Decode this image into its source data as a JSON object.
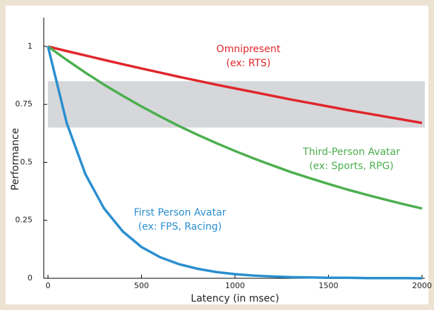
{
  "chart_data": {
    "type": "line",
    "xlabel": "Latency (in msec)",
    "ylabel": "Performance",
    "x": [
      0,
      100,
      200,
      300,
      400,
      500,
      600,
      700,
      800,
      900,
      1000,
      1100,
      1200,
      1300,
      1400,
      1500,
      1600,
      1700,
      1800,
      1900,
      2000
    ],
    "series": [
      {
        "name": "Omnipresent",
        "note": "(ex: RTS)",
        "color": "#e0262c",
        "values": [
          1,
          0.98,
          0.961,
          0.942,
          0.923,
          0.905,
          0.887,
          0.869,
          0.852,
          0.835,
          0.819,
          0.803,
          0.787,
          0.771,
          0.756,
          0.741,
          0.726,
          0.712,
          0.698,
          0.684,
          0.67
        ]
      },
      {
        "name": "Third-Person Avatar",
        "note": "(ex: Sports, RPG)",
        "color": "#4caf4f",
        "values": [
          1,
          0.942,
          0.887,
          0.835,
          0.787,
          0.741,
          0.698,
          0.657,
          0.619,
          0.583,
          0.549,
          0.517,
          0.487,
          0.458,
          0.432,
          0.407,
          0.383,
          0.361,
          0.34,
          0.32,
          0.301
        ]
      },
      {
        "name": "First Person Avatar",
        "note": "(ex: FPS, Racing)",
        "color": "#2a8fcf",
        "values": [
          1,
          0.67,
          0.449,
          0.301,
          0.202,
          0.135,
          0.091,
          0.061,
          0.041,
          0.027,
          0.018,
          0.012,
          0.008,
          0.005,
          0.004,
          0.002,
          0.002,
          0.001,
          0.001,
          0.001,
          0
        ]
      }
    ],
    "band": [
      0.65,
      0.85
    ],
    "band_color": "#d6d7da",
    "xlim": [
      0,
      2000
    ],
    "xticks": [
      0,
      500,
      1000,
      1500,
      2000
    ],
    "ylim": [
      0,
      1.1
    ],
    "yticks": [
      0,
      0.25,
      0.5,
      0.75,
      1
    ],
    "grid": false
  }
}
